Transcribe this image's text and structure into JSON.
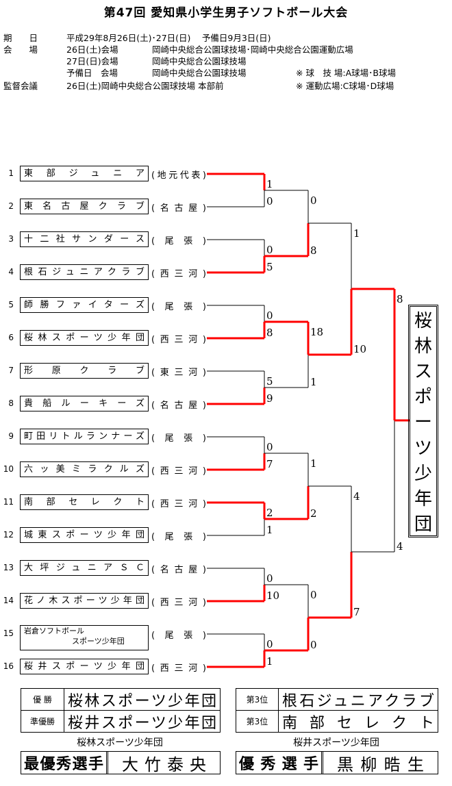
{
  "title": "第47回 愛知県小学生男子ソフトボール大会",
  "info": [
    {
      "label": "期　　日",
      "cols": [
        "平成29年8月26日(土)･27日(日)　 予備日9月3日(日)"
      ]
    },
    {
      "label": "会　　場",
      "cols": [
        "26日(土)会場",
        "岡崎中央総合公園球技場･岡崎中央総合公園運動広場"
      ]
    },
    {
      "label": "",
      "cols": [
        "27日(日)会場",
        "岡崎中央総合公園球技場"
      ]
    },
    {
      "label": "",
      "cols": [
        "予備日　会場",
        "岡崎中央総合公園球技場"
      ],
      "note": "※ 球　技 場:A球場･B球場"
    },
    {
      "label": "監督会議",
      "cols": [
        "26日(土)岡崎中央総合公園球技場 本部前"
      ],
      "note": "※ 運動広場:C球場･D球場"
    }
  ],
  "teams": [
    {
      "no": "1",
      "name": "東部ジュニア",
      "region": "(地元代表)"
    },
    {
      "no": "2",
      "name": "東名古屋クラブ",
      "region": "(名古屋)"
    },
    {
      "no": "3",
      "name": "十二社サンダース",
      "region": "(尾張)"
    },
    {
      "no": "4",
      "name": "根石ジュニアクラブ",
      "region": "(西三河)"
    },
    {
      "no": "5",
      "name": "師勝ファイターズ",
      "region": "(尾張)"
    },
    {
      "no": "6",
      "name": "桜林スポーツ少年団",
      "region": "(西三河)"
    },
    {
      "no": "7",
      "name": "形原クラブ",
      "region": "(東三河)"
    },
    {
      "no": "8",
      "name": "貴船ルーキーズ",
      "region": "(名古屋)"
    },
    {
      "no": "9",
      "name": "町田リトルランナーズ",
      "region": "(尾張)"
    },
    {
      "no": "10",
      "name": "六ッ美ミラクルズ",
      "region": "(西三河)"
    },
    {
      "no": "11",
      "name": "南部セレクト",
      "region": "(西三河)"
    },
    {
      "no": "12",
      "name": "城東スポーツ少年団",
      "region": "(尾張)"
    },
    {
      "no": "13",
      "name": "大坪ジュニアＳＣ",
      "region": "(名古屋)"
    },
    {
      "no": "14",
      "name": "花ノ木スポーツ少年団",
      "region": "(西三河)"
    },
    {
      "no": "15",
      "name": "岩倉ソフトボール",
      "name2": "スポーツ少年団",
      "region": "(尾張)"
    },
    {
      "no": "16",
      "name": "桜井スポーツ少年団",
      "region": "(西三河)"
    }
  ],
  "rounds": [
    [
      {
        "scores": [
          "1",
          "0"
        ],
        "winner": "top"
      },
      {
        "scores": [
          "0",
          "5"
        ],
        "winner": "bottom"
      },
      {
        "scores": [
          "0",
          "8"
        ],
        "winner": "bottom"
      },
      {
        "scores": [
          "5",
          "9"
        ],
        "winner": "bottom"
      },
      {
        "scores": [
          "0",
          "7"
        ],
        "winner": "bottom"
      },
      {
        "scores": [
          "2",
          "1"
        ],
        "winner": "top"
      },
      {
        "scores": [
          "0",
          "10"
        ],
        "winner": "bottom"
      },
      {
        "scores": [
          "0",
          "1"
        ],
        "winner": "bottom"
      }
    ],
    [
      {
        "scores": [
          "0",
          "8"
        ],
        "winner": "bottom"
      },
      {
        "scores": [
          "18",
          "1"
        ],
        "winner": "top"
      },
      {
        "scores": [
          "1",
          "2"
        ],
        "winner": "bottom"
      },
      {
        "scores": [
          "0",
          "0"
        ],
        "winner": "bottom"
      }
    ],
    [
      {
        "scores": [
          "1",
          "10"
        ],
        "winner": "bottom"
      },
      {
        "scores": [
          "4",
          "7"
        ],
        "winner": "bottom"
      }
    ],
    [
      {
        "scores": [
          "8",
          "4"
        ],
        "winner": "top"
      }
    ]
  ],
  "champion": "桜林スポーツ少年団",
  "results": {
    "left": [
      {
        "label": "優 勝",
        "team": "桜林スポーツ少年団"
      },
      {
        "label": "準優勝",
        "team": "桜井スポーツ少年団"
      }
    ],
    "right": [
      {
        "label": "第3位",
        "team": "根石ジュニアクラブ"
      },
      {
        "label": "第3位",
        "team": "南部セレクト"
      }
    ]
  },
  "awards": [
    {
      "team": "桜林スポーツ少年団",
      "label": "最優秀選手",
      "player": "大竹泰央"
    },
    {
      "team": "桜井スポーツ少年団",
      "label": "優秀選手",
      "player": "黒柳晧生"
    }
  ],
  "colors": {
    "winner_line": "#ff0000",
    "line": "#000000"
  }
}
